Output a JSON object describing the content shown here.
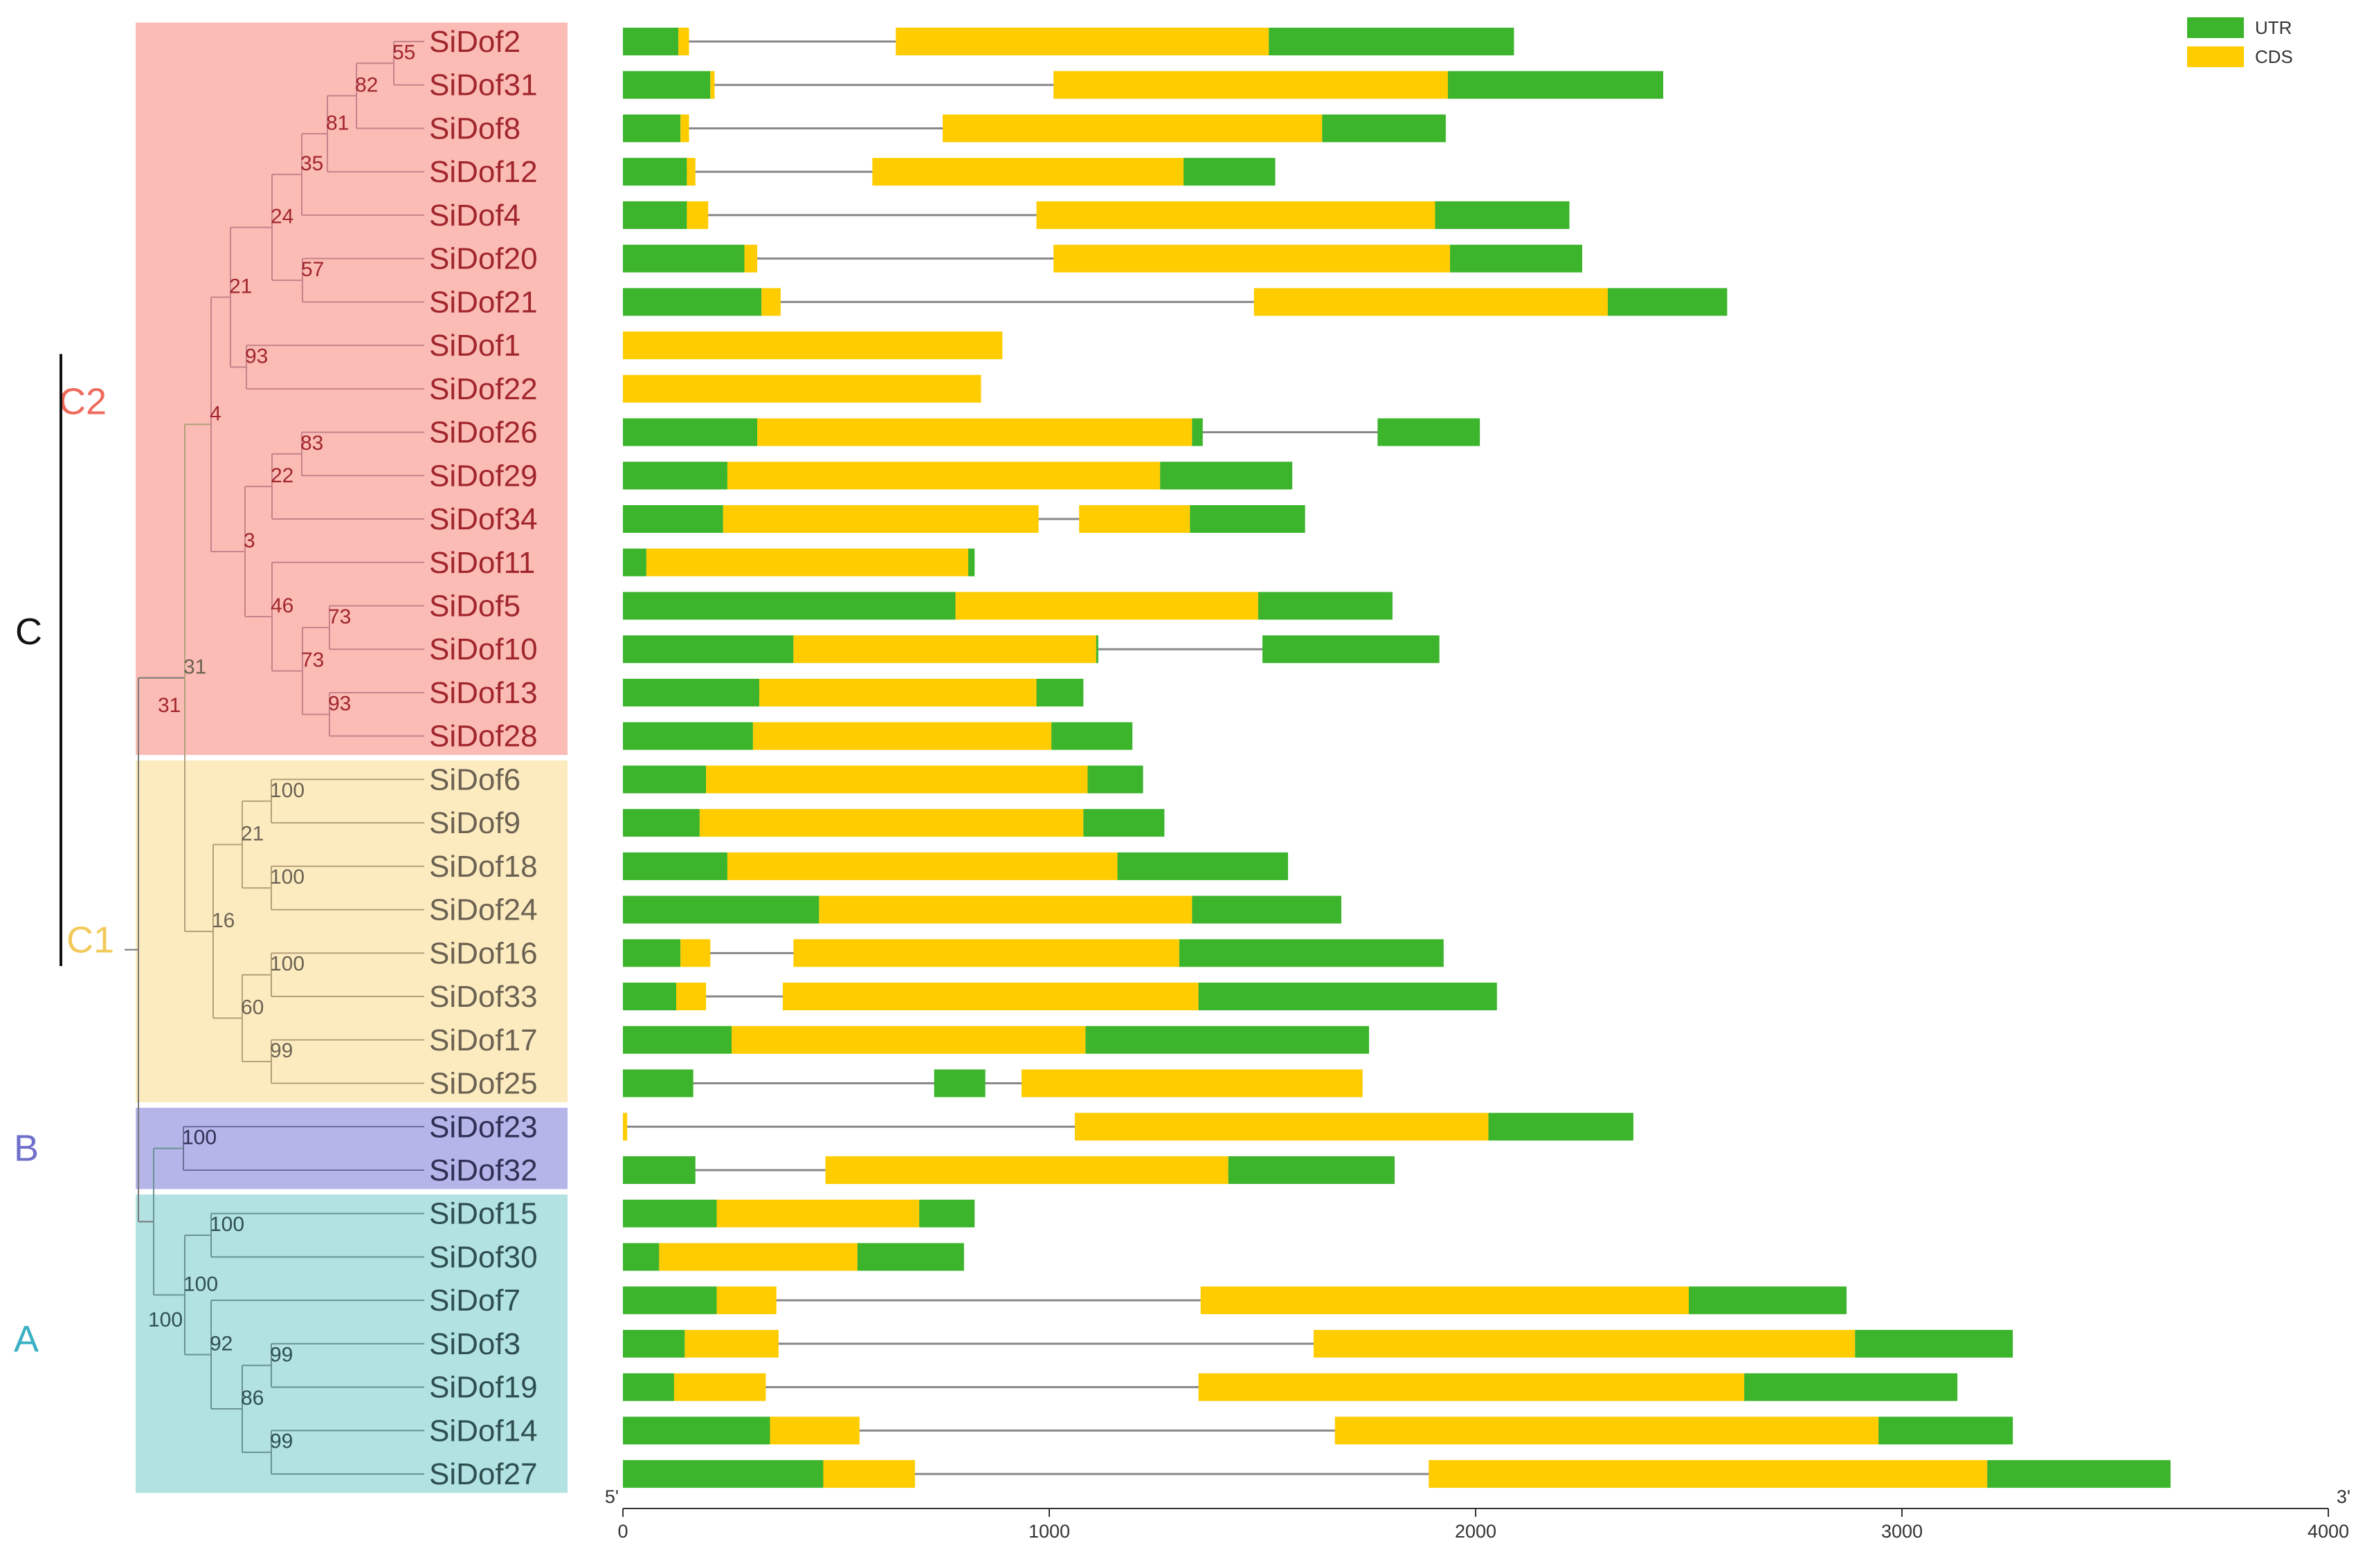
{
  "colors": {
    "utr": "#3cb42c",
    "cds": "#ffcc00",
    "intron": "#888888",
    "group_C2_bg": "#fbbcb6",
    "group_C1_bg": "#fdebc0",
    "group_B_bg": "#b5b5ea",
    "group_A_bg": "#b2e2e2",
    "label_C2": "#ee6a5c",
    "label_C1": "#f2c95a",
    "label_B": "#7070cc",
    "label_A": "#3ab0c4",
    "label_C": "#111111",
    "branch_C2": "#c7828a",
    "branch_C1": "#b3a07a",
    "branch_B": "#6e6e9a",
    "branch_A": "#6a9292",
    "text_C2": "#a1262c",
    "text_C1": "#6b6252",
    "text_B": "#303055",
    "text_A": "#2f4f4f"
  },
  "legend": {
    "utr_label": "UTR",
    "cds_label": "CDS"
  },
  "axis": {
    "min": 0,
    "max": 4000,
    "ticks": [
      0,
      1000,
      2000,
      3000,
      4000
    ],
    "tick_labels": [
      "0",
      "1000",
      "2000",
      "3000",
      "4000"
    ],
    "start_label": "5'",
    "end_label": "3'"
  },
  "groups": [
    {
      "id": "C2",
      "label": "C2",
      "from": 0,
      "to": 16
    },
    {
      "id": "C1",
      "label": "C1",
      "from": 17,
      "to": 24
    },
    {
      "id": "B",
      "label": "B",
      "from": 25,
      "to": 26
    },
    {
      "id": "A",
      "label": "A",
      "from": 27,
      "to": 33
    }
  ],
  "supergroup": {
    "label": "C",
    "groups": [
      "C2",
      "C1"
    ]
  },
  "genes": [
    {
      "name": "SiDof2",
      "group": "C2",
      "length": 2090,
      "features": [
        [
          "u",
          0,
          130
        ],
        [
          "c",
          130,
          155
        ],
        [
          "c",
          640,
          1515
        ],
        [
          "u",
          1515,
          2090
        ]
      ]
    },
    {
      "name": "SiDof31",
      "group": "C2",
      "length": 2440,
      "features": [
        [
          "u",
          0,
          205
        ],
        [
          "c",
          205,
          215
        ],
        [
          "c",
          1010,
          1935
        ],
        [
          "u",
          1935,
          2440
        ]
      ]
    },
    {
      "name": "SiDof8",
      "group": "C2",
      "length": 1930,
      "features": [
        [
          "u",
          0,
          135
        ],
        [
          "c",
          135,
          155
        ],
        [
          "c",
          750,
          1640
        ],
        [
          "u",
          1640,
          1930
        ]
      ]
    },
    {
      "name": "SiDof12",
      "group": "C2",
      "length": 1530,
      "features": [
        [
          "u",
          0,
          150
        ],
        [
          "c",
          150,
          170
        ],
        [
          "c",
          585,
          1315
        ],
        [
          "u",
          1315,
          1530
        ]
      ]
    },
    {
      "name": "SiDof4",
      "group": "C2",
      "length": 2220,
      "features": [
        [
          "u",
          0,
          150
        ],
        [
          "c",
          150,
          200
        ],
        [
          "c",
          970,
          1905
        ],
        [
          "u",
          1905,
          2220
        ]
      ]
    },
    {
      "name": "SiDof20",
      "group": "C2",
      "length": 2250,
      "features": [
        [
          "u",
          0,
          285
        ],
        [
          "c",
          285,
          315
        ],
        [
          "c",
          1010,
          1940
        ],
        [
          "u",
          1940,
          2250
        ]
      ]
    },
    {
      "name": "SiDof21",
      "group": "C2",
      "length": 2590,
      "features": [
        [
          "u",
          0,
          325
        ],
        [
          "c",
          325,
          370
        ],
        [
          "c",
          1480,
          2310
        ],
        [
          "u",
          2310,
          2590
        ]
      ]
    },
    {
      "name": "SiDof1",
      "group": "C2",
      "length": 890,
      "features": [
        [
          "c",
          0,
          890
        ]
      ]
    },
    {
      "name": "SiDof22",
      "group": "C2",
      "length": 840,
      "features": [
        [
          "c",
          0,
          840
        ]
      ]
    },
    {
      "name": "SiDof26",
      "group": "C2",
      "length": 2010,
      "features": [
        [
          "u",
          0,
          315
        ],
        [
          "c",
          315,
          1335
        ],
        [
          "u",
          1335,
          1360
        ],
        [
          "u",
          1770,
          2010
        ]
      ]
    },
    {
      "name": "SiDof29",
      "group": "C2",
      "length": 1570,
      "features": [
        [
          "u",
          0,
          245
        ],
        [
          "c",
          245,
          1260
        ],
        [
          "u",
          1260,
          1570
        ]
      ]
    },
    {
      "name": "SiDof34",
      "group": "C2",
      "length": 1600,
      "features": [
        [
          "u",
          0,
          235
        ],
        [
          "c",
          235,
          975
        ],
        [
          "c",
          1070,
          1330
        ],
        [
          "u",
          1330,
          1600
        ]
      ]
    },
    {
      "name": "SiDof11",
      "group": "C2",
      "length": 825,
      "features": [
        [
          "u",
          0,
          55
        ],
        [
          "c",
          55,
          810
        ],
        [
          "u",
          810,
          825
        ]
      ]
    },
    {
      "name": "SiDof5",
      "group": "C2",
      "length": 1805,
      "features": [
        [
          "u",
          0,
          780
        ],
        [
          "c",
          780,
          1490
        ],
        [
          "u",
          1490,
          1805
        ]
      ]
    },
    {
      "name": "SiDof10",
      "group": "C2",
      "length": 1915,
      "features": [
        [
          "u",
          0,
          400
        ],
        [
          "c",
          400,
          1110
        ],
        [
          "u",
          1110,
          1115
        ],
        [
          "u",
          1500,
          1915
        ]
      ]
    },
    {
      "name": "SiDof13",
      "group": "C2",
      "length": 1080,
      "features": [
        [
          "u",
          0,
          320
        ],
        [
          "c",
          320,
          970
        ],
        [
          "u",
          970,
          1080
        ]
      ]
    },
    {
      "name": "SiDof28",
      "group": "C2",
      "length": 1195,
      "features": [
        [
          "u",
          0,
          305
        ],
        [
          "c",
          305,
          1005
        ],
        [
          "u",
          1005,
          1195
        ]
      ]
    },
    {
      "name": "SiDof6",
      "group": "C1",
      "length": 1220,
      "features": [
        [
          "u",
          0,
          195
        ],
        [
          "c",
          195,
          1090
        ],
        [
          "u",
          1090,
          1220
        ]
      ]
    },
    {
      "name": "SiDof9",
      "group": "C1",
      "length": 1270,
      "features": [
        [
          "u",
          0,
          180
        ],
        [
          "c",
          180,
          1080
        ],
        [
          "u",
          1080,
          1270
        ]
      ]
    },
    {
      "name": "SiDof18",
      "group": "C1",
      "length": 1560,
      "features": [
        [
          "u",
          0,
          245
        ],
        [
          "c",
          245,
          1160
        ],
        [
          "u",
          1160,
          1560
        ]
      ]
    },
    {
      "name": "SiDof24",
      "group": "C1",
      "length": 1685,
      "features": [
        [
          "u",
          0,
          460
        ],
        [
          "c",
          460,
          1335
        ],
        [
          "u",
          1335,
          1685
        ]
      ]
    },
    {
      "name": "SiDof16",
      "group": "C1",
      "length": 1925,
      "features": [
        [
          "u",
          0,
          135
        ],
        [
          "c",
          135,
          205
        ],
        [
          "c",
          400,
          1305
        ],
        [
          "u",
          1305,
          1925
        ]
      ]
    },
    {
      "name": "SiDof33",
      "group": "C1",
      "length": 2050,
      "features": [
        [
          "u",
          0,
          125
        ],
        [
          "c",
          125,
          195
        ],
        [
          "c",
          375,
          1350
        ],
        [
          "u",
          1350,
          2050
        ]
      ]
    },
    {
      "name": "SiDof17",
      "group": "C1",
      "length": 1750,
      "features": [
        [
          "u",
          0,
          255
        ],
        [
          "c",
          255,
          1085
        ],
        [
          "u",
          1085,
          1750
        ]
      ]
    },
    {
      "name": "SiDof25",
      "group": "C1",
      "length": 1735,
      "features": [
        [
          "u",
          0,
          165
        ],
        [
          "u",
          730,
          850
        ],
        [
          "c",
          935,
          1735
        ]
      ]
    },
    {
      "name": "SiDof23",
      "group": "B",
      "length": 2370,
      "features": [
        [
          "c",
          0,
          10
        ],
        [
          "c",
          1060,
          2030
        ],
        [
          "u",
          2030,
          2370
        ]
      ]
    },
    {
      "name": "SiDof32",
      "group": "B",
      "length": 1810,
      "features": [
        [
          "u",
          0,
          170
        ],
        [
          "c",
          475,
          1420
        ],
        [
          "u",
          1420,
          1810
        ]
      ]
    },
    {
      "name": "SiDof15",
      "group": "A",
      "length": 825,
      "features": [
        [
          "u",
          0,
          220
        ],
        [
          "c",
          220,
          695
        ],
        [
          "u",
          695,
          825
        ]
      ]
    },
    {
      "name": "SiDof30",
      "group": "A",
      "length": 800,
      "features": [
        [
          "u",
          0,
          85
        ],
        [
          "c",
          85,
          550
        ],
        [
          "u",
          550,
          800
        ]
      ]
    },
    {
      "name": "SiDof7",
      "group": "A",
      "length": 2870,
      "features": [
        [
          "u",
          0,
          220
        ],
        [
          "c",
          220,
          360
        ],
        [
          "c",
          1355,
          2500
        ],
        [
          "u",
          2500,
          2870
        ]
      ]
    },
    {
      "name": "SiDof3",
      "group": "A",
      "length": 3260,
      "features": [
        [
          "u",
          0,
          145
        ],
        [
          "c",
          145,
          365
        ],
        [
          "c",
          1620,
          2890
        ],
        [
          "u",
          2890,
          3260
        ]
      ]
    },
    {
      "name": "SiDof19",
      "group": "A",
      "length": 3130,
      "features": [
        [
          "u",
          0,
          120
        ],
        [
          "c",
          120,
          335
        ],
        [
          "c",
          1350,
          2630
        ],
        [
          "u",
          2630,
          3130
        ]
      ]
    },
    {
      "name": "SiDof14",
      "group": "A",
      "length": 3260,
      "features": [
        [
          "u",
          0,
          345
        ],
        [
          "c",
          345,
          555
        ],
        [
          "c",
          1670,
          2945
        ],
        [
          "u",
          2945,
          3260
        ]
      ]
    },
    {
      "name": "SiDof27",
      "group": "A",
      "length": 3630,
      "features": [
        [
          "u",
          0,
          470
        ],
        [
          "c",
          470,
          685
        ],
        [
          "c",
          1890,
          3200
        ],
        [
          "u",
          3200,
          3630
        ]
      ]
    }
  ],
  "tree": {
    "support_values": [
      "55",
      "82",
      "81",
      "35",
      "24",
      "57",
      "21",
      "93",
      "4",
      "83",
      "22",
      "3",
      "46",
      "73",
      "73",
      "93",
      "31",
      "100",
      "21",
      "100",
      "16",
      "100",
      "60",
      "99",
      "100",
      "100",
      "100",
      "92",
      "99",
      "86",
      "99"
    ]
  }
}
